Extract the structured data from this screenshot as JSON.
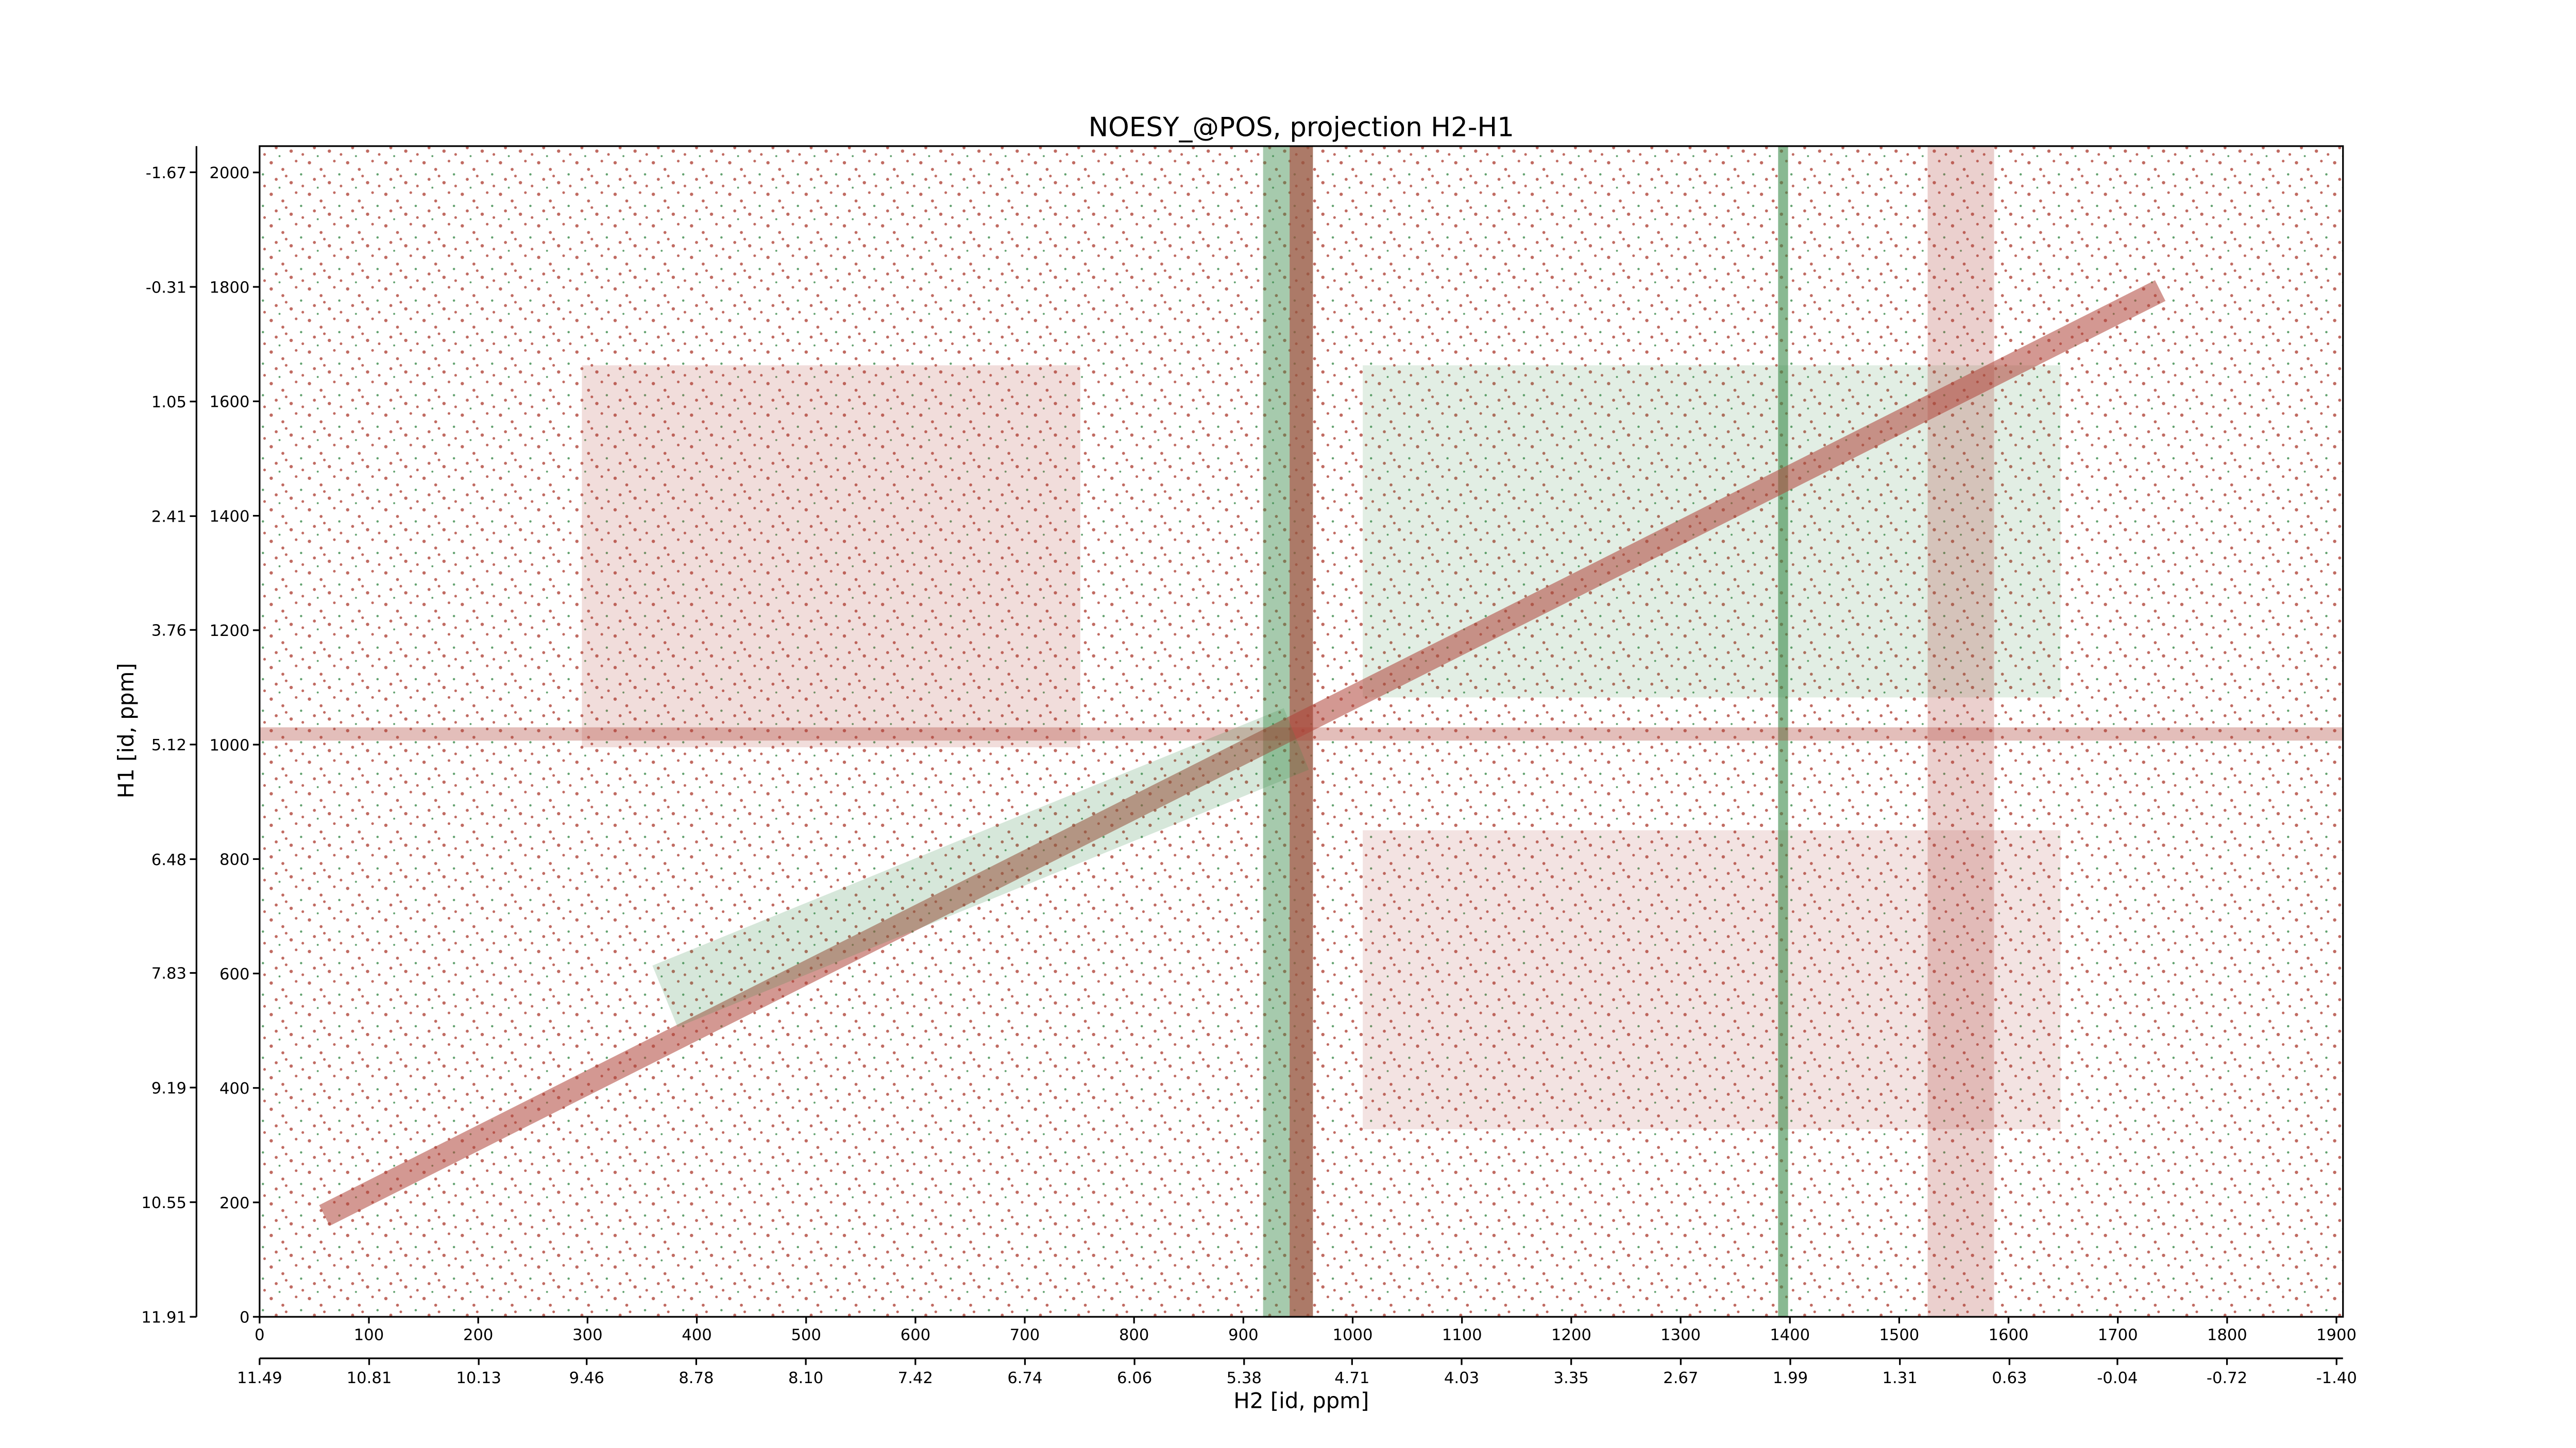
{
  "chart_data": {
    "type": "contour",
    "title": "NOESY_@POS, projection H2-H1",
    "xlabel": "H2 [id, ppm]",
    "ylabel": "H1 [id, ppm]",
    "xlim": [
      0,
      1906
    ],
    "xticks": [
      0,
      100,
      200,
      300,
      400,
      500,
      600,
      700,
      800,
      900,
      1000,
      1100,
      1200,
      1300,
      1400,
      1500,
      1600,
      1700,
      1800,
      1900
    ],
    "ylim": [
      0,
      2046
    ],
    "yticks": [
      0,
      200,
      400,
      600,
      800,
      1000,
      1200,
      1400,
      1600,
      1800,
      2000
    ],
    "x2lim": [
      11.49,
      -1.44
    ],
    "x2ticks": [
      11.49,
      10.81,
      10.13,
      9.46,
      8.78,
      {
        "value": 8.1,
        "label": "8.10"
      },
      7.42,
      6.74,
      6.06,
      5.38,
      4.71,
      4.03,
      3.35,
      2.67,
      1.99,
      1.31,
      0.63,
      -0.04,
      -0.72,
      {
        "value": -1.4,
        "label": "-1.40"
      }
    ],
    "y2lim": [
      11.91,
      -1.98
    ],
    "y2ticks": [
      11.91,
      10.55,
      9.19,
      7.83,
      6.48,
      5.12,
      3.76,
      2.41,
      1.05,
      -0.31,
      -1.67
    ],
    "positive_color": "#b0453a",
    "negative_color": "#3a8a4a"
  }
}
